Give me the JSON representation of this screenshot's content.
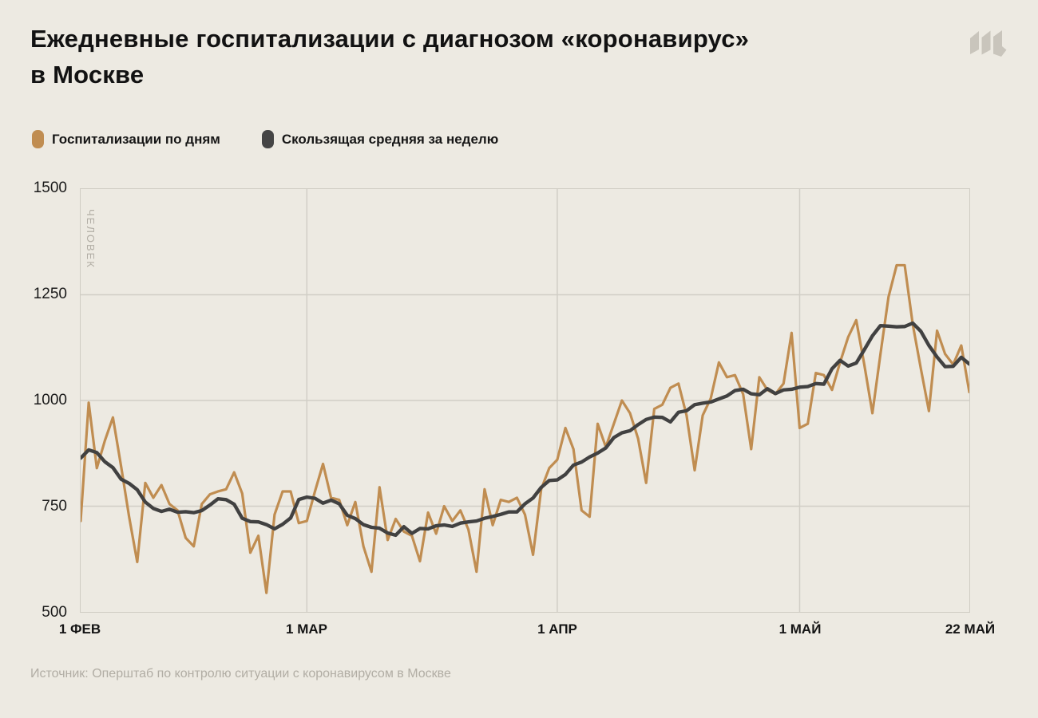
{
  "header": {
    "title_lines": [
      "Ежедневные госпитализации с диагнозом «коронавирус»",
      "в Москве"
    ],
    "logo": "meduza-m-logo",
    "logo_color": "#C9C5BC"
  },
  "legend": [
    {
      "label": "Госпитализации по дням",
      "color": "#C08D51"
    },
    {
      "label": "Скользящая средняя за неделю",
      "color": "#454545"
    }
  ],
  "source": "Источник: Оперштаб по контролю ситуации с коронавирусом в Москве",
  "colors": {
    "background": "#EDEAE2",
    "grid": "#D1CEC6",
    "daily_line": "#C08D51",
    "average_line": "#414141",
    "muted_text": "#B2AEA5"
  },
  "chart_data": {
    "type": "line",
    "title": "Ежедневные госпитализации с диагнозом «коронавирус» в Москве",
    "unit_label": "ЧЕЛОВЕК",
    "grid": true,
    "legend_position": "top-left",
    "y_axis": {
      "min": 500,
      "max": 1500,
      "ticks": [
        1500,
        1250,
        1000,
        750,
        500
      ],
      "grid_values": [
        1250,
        1000,
        750
      ]
    },
    "x_axis": {
      "total_days": 110,
      "ticks": [
        {
          "label": "1 ФЕВ",
          "day": 0
        },
        {
          "label": "1 МАР",
          "day": 28
        },
        {
          "label": "1 АПР",
          "day": 59
        },
        {
          "label": "1 МАЙ",
          "day": 89
        },
        {
          "label": "22 МАЙ",
          "day": 110
        }
      ],
      "grid_days": [
        28,
        59,
        89
      ]
    },
    "series": [
      {
        "name": "Госпитализации по дням",
        "color": "#C08D51",
        "values": [
          715,
          995,
          840,
          905,
          960,
          845,
          725,
          618,
          805,
          770,
          800,
          755,
          740,
          675,
          655,
          755,
          778,
          785,
          790,
          830,
          780,
          640,
          680,
          545,
          730,
          785,
          785,
          710,
          715,
          785,
          850,
          770,
          765,
          705,
          760,
          655,
          595,
          795,
          670,
          720,
          690,
          680,
          620,
          735,
          685,
          750,
          715,
          740,
          695,
          595,
          790,
          705,
          765,
          760,
          770,
          730,
          635,
          790,
          840,
          860,
          935,
          885,
          740,
          725,
          945,
          890,
          945,
          1000,
          970,
          910,
          805,
          980,
          990,
          1030,
          1040,
          965,
          835,
          965,
          1005,
          1090,
          1055,
          1060,
          1015,
          885,
          1055,
          1025,
          1015,
          1040,
          1160,
          935,
          945,
          1065,
          1060,
          1025,
          1090,
          1150,
          1190,
          1085,
          970,
          1110,
          1245,
          1320,
          1320,
          1180,
          1075,
          975,
          1165,
          1110,
          1085,
          1130,
          1020
        ]
      },
      {
        "name": "Скользящая средняя за неделю",
        "color": "#414141",
        "derived": "centered 7-day moving average of first series (partial windows at edges)",
        "window": 7
      }
    ]
  }
}
